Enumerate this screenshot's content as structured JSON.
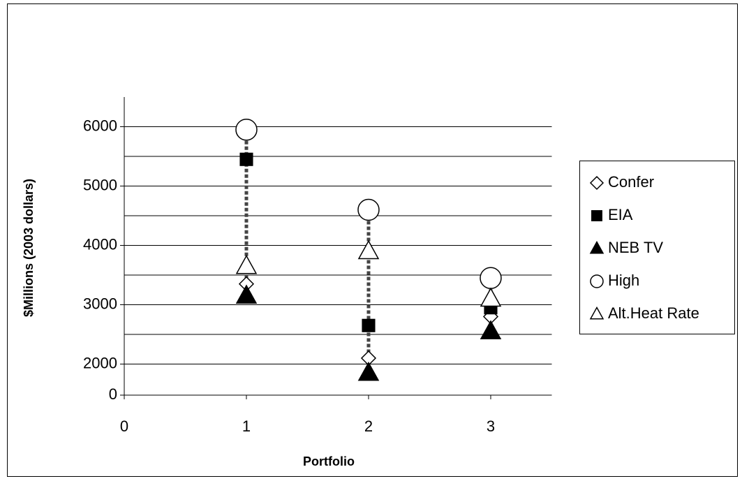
{
  "chart_data": {
    "type": "scatter",
    "x_label": "Portfolio",
    "y_label": "$Millions (2003 dollars)",
    "x": [
      1,
      2,
      3
    ],
    "xlim": [
      0,
      3.5
    ],
    "xticks": [
      0,
      1,
      2,
      3
    ],
    "ylim": [
      0,
      6500
    ],
    "yticks": [
      0,
      2000,
      3000,
      4000,
      5000,
      6000
    ],
    "axis_break": [
      0,
      1500
    ],
    "ygrid": [
      2000,
      2500,
      3000,
      3500,
      4000,
      4500,
      5000,
      5500,
      6000
    ],
    "high_low_lines": true,
    "series": [
      {
        "name": "Confer",
        "marker": "diamond",
        "fill": "#ffffff",
        "color": "#000000",
        "values": [
          3350,
          2100,
          2800
        ]
      },
      {
        "name": "EIA",
        "marker": "square",
        "fill": "#000000",
        "color": "#000000",
        "values": [
          5450,
          2650,
          2950
        ]
      },
      {
        "name": "NEB TV",
        "marker": "triangle",
        "fill": "#000000",
        "color": "#000000",
        "values": [
          3150,
          1850,
          2550
        ]
      },
      {
        "name": "High",
        "marker": "circle",
        "fill": "#ffffff",
        "color": "#000000",
        "values": [
          5950,
          4600,
          3450
        ]
      },
      {
        "name": "Alt.Heat Rate",
        "marker": "triangle",
        "fill": "#ffffff",
        "color": "#000000",
        "values": [
          3650,
          3900,
          3100
        ]
      }
    ],
    "legend": "right"
  }
}
